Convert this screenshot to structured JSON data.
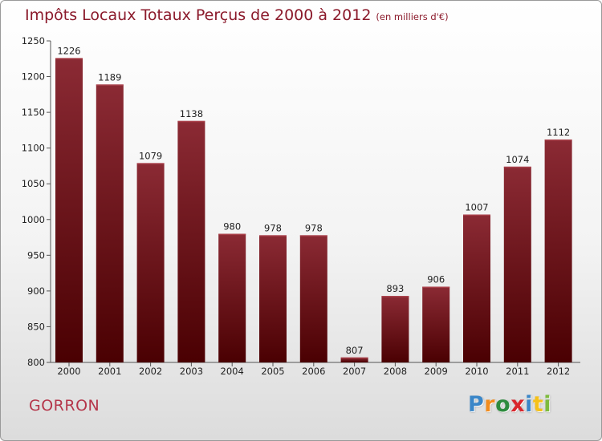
{
  "title": "Impôts Locaux Totaux Perçus de 2000 à 2012",
  "title_unit": "(en milliers d'€)",
  "city": "GORRON",
  "logo": {
    "letters": [
      "P",
      "r",
      "o",
      "x",
      "i",
      "t",
      "i"
    ],
    "colors": [
      "#3a86c8",
      "#f28c1e",
      "#2e8b3e",
      "#d9262c",
      "#3a86c8",
      "#f5c11a",
      "#7dbb3c"
    ]
  },
  "colors": {
    "bar_top": "#8b2a34",
    "bar_bottom": "#4a0002",
    "title": "#8b1a2b",
    "city": "#b5364a",
    "axis": "#555555"
  },
  "chart_data": {
    "type": "bar",
    "title": "Impôts Locaux Totaux Perçus de 2000 à 2012",
    "xlabel": "",
    "ylabel": "",
    "categories": [
      "2000",
      "2001",
      "2002",
      "2003",
      "2004",
      "2005",
      "2006",
      "2007",
      "2008",
      "2009",
      "2010",
      "2011",
      "2012"
    ],
    "values": [
      1226,
      1189,
      1079,
      1138,
      980,
      978,
      978,
      807,
      893,
      906,
      1007,
      1074,
      1112
    ],
    "labels": [
      "1226",
      "1189",
      "1079",
      "1138",
      "980",
      "978",
      "978",
      "807",
      "893",
      "906",
      "1007",
      "1074",
      "1112"
    ],
    "ylim": [
      800,
      1250
    ],
    "yticks": [
      800,
      850,
      900,
      950,
      1000,
      1050,
      1100,
      1150,
      1200,
      1250
    ],
    "grid": false
  }
}
